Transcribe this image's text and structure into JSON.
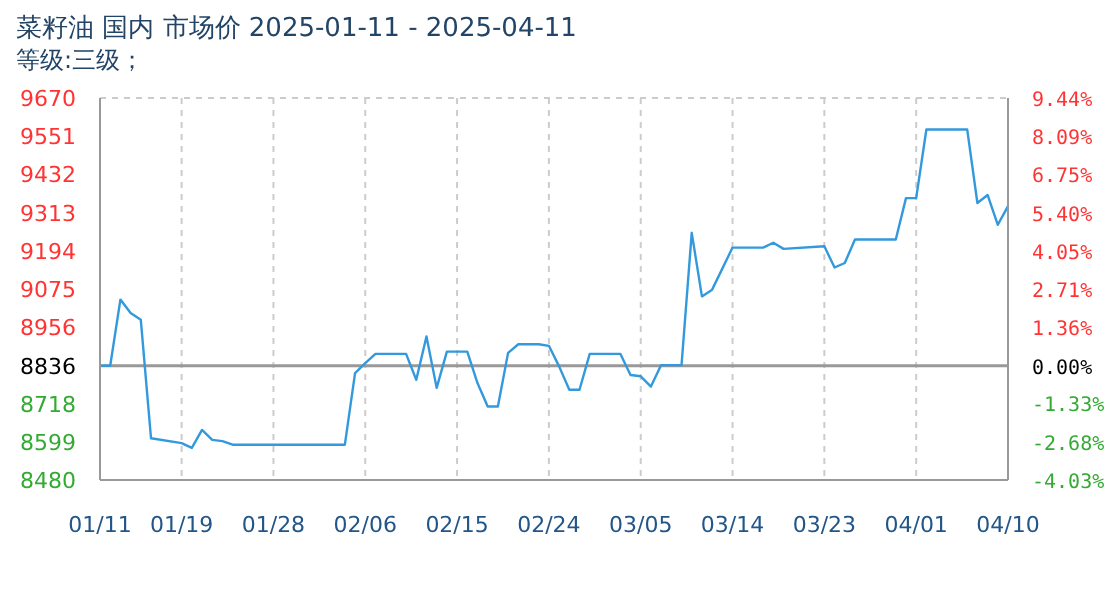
{
  "chart_data": {
    "type": "line",
    "title": "菜籽油 国内 市场价 2025-01-11 - 2025-04-11",
    "subtitle": "等级:三级；",
    "x": [
      "2025-01-11",
      "2025-01-12",
      "2025-01-13",
      "2025-01-14",
      "2025-01-15",
      "2025-01-16",
      "2025-01-19",
      "2025-01-20",
      "2025-01-21",
      "2025-01-22",
      "2025-01-23",
      "2025-01-24",
      "2025-02-04",
      "2025-02-05",
      "2025-02-06",
      "2025-02-07",
      "2025-02-10",
      "2025-02-11",
      "2025-02-12",
      "2025-02-13",
      "2025-02-14",
      "2025-02-16",
      "2025-02-17",
      "2025-02-18",
      "2025-02-19",
      "2025-02-20",
      "2025-02-21",
      "2025-02-23",
      "2025-02-24",
      "2025-02-25",
      "2025-02-26",
      "2025-02-27",
      "2025-02-28",
      "2025-03-03",
      "2025-03-04",
      "2025-03-05",
      "2025-03-06",
      "2025-03-07",
      "2025-03-09",
      "2025-03-10",
      "2025-03-11",
      "2025-03-12",
      "2025-03-14",
      "2025-03-17",
      "2025-03-18",
      "2025-03-19",
      "2025-03-23",
      "2025-03-24",
      "2025-03-25",
      "2025-03-26",
      "2025-03-30",
      "2025-03-31",
      "2025-04-01",
      "2025-04-02",
      "2025-04-06",
      "2025-04-07",
      "2025-04-08",
      "2025-04-09",
      "2025-04-10"
    ],
    "series": [
      {
        "color": "#3399dd",
        "values": [
          8836,
          8836,
          9042,
          9000,
          8979,
          8610,
          8595,
          8580,
          8636,
          8605,
          8601,
          8590,
          8590,
          8813,
          8844,
          8873,
          8873,
          8792,
          8927,
          8767,
          8880,
          8880,
          8782,
          8709,
          8709,
          8876,
          8903,
          8903,
          8898,
          8834,
          8761,
          8761,
          8873,
          8873,
          8807,
          8803,
          8771,
          8838,
          8838,
          9250,
          9052,
          9073,
          9204,
          9204,
          9219,
          9200,
          9208,
          9142,
          9156,
          9229,
          9229,
          9358,
          9358,
          9572,
          9572,
          9343,
          9368,
          9275,
          9333
        ]
      }
    ],
    "xlim": [
      "2025-01-11",
      "2025-04-10"
    ],
    "xticks": [
      {
        "value": "2025-01-11",
        "label": "01/11"
      },
      {
        "value": "2025-01-19",
        "label": "01/19"
      },
      {
        "value": "2025-01-28",
        "label": "01/28"
      },
      {
        "value": "2025-02-06",
        "label": "02/06"
      },
      {
        "value": "2025-02-15",
        "label": "02/15"
      },
      {
        "value": "2025-02-24",
        "label": "02/24"
      },
      {
        "value": "2025-03-05",
        "label": "03/05"
      },
      {
        "value": "2025-03-14",
        "label": "03/14"
      },
      {
        "value": "2025-03-23",
        "label": "03/23"
      },
      {
        "value": "2025-04-01",
        "label": "04/01"
      },
      {
        "value": "2025-04-10",
        "label": "04/10"
      }
    ],
    "ylim": [
      8480,
      9670
    ],
    "yticks": [
      8480,
      8599,
      8718,
      8836,
      8956,
      9075,
      9194,
      9313,
      9432,
      9551,
      9670
    ],
    "y2lim": [
      -4.03,
      9.44
    ],
    "y2ticks": [
      {
        "value": -4.03,
        "label": "-4.03%"
      },
      {
        "value": -2.68,
        "label": "-2.68%"
      },
      {
        "value": -1.33,
        "label": "-1.33%"
      },
      {
        "value": 0,
        "label": "0.00%"
      },
      {
        "value": 1.36,
        "label": "1.36%"
      },
      {
        "value": 2.71,
        "label": "2.71%"
      },
      {
        "value": 4.05,
        "label": "4.05%"
      },
      {
        "value": 5.4,
        "label": "5.40%"
      },
      {
        "value": 6.75,
        "label": "6.75%"
      },
      {
        "value": 8.09,
        "label": "8.09%"
      },
      {
        "value": 9.44,
        "label": "9.44%"
      }
    ],
    "ref_lines": [
      {
        "axis": "y",
        "value": 8836,
        "color": "#999999"
      }
    ],
    "grid": true,
    "marker": "none",
    "line_style": "solid"
  }
}
